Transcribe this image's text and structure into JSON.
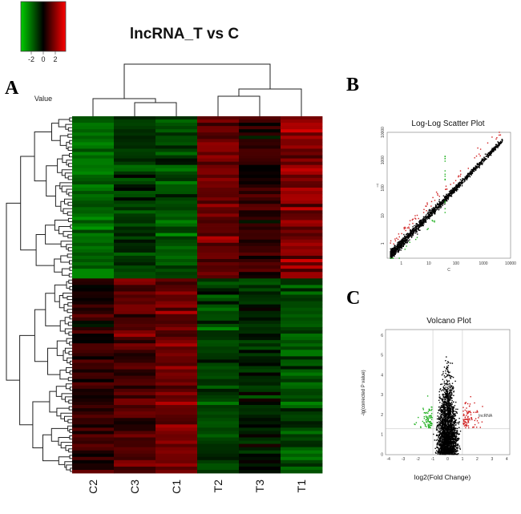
{
  "figure": {
    "panel_labels": [
      "A",
      "B",
      "C"
    ]
  },
  "chart_data": [
    {
      "type": "heatmap",
      "title": "lncRNA_T vs C",
      "columns": [
        "C2",
        "C3",
        "C1",
        "T2",
        "T3",
        "T1"
      ],
      "color_key": {
        "label": "Value",
        "ticks": [
          "-2",
          "0",
          "2"
        ],
        "range": [
          -3,
          3
        ],
        "low_color": "#00cc00",
        "mid_color": "#000000",
        "high_color": "#ff0000"
      },
      "row_count": 110,
      "row_groups": [
        {
          "rows": 50,
          "column_means": [
            -1.6,
            -0.8,
            -1.1,
            1.2,
            0.5,
            1.6
          ]
        },
        {
          "rows": 60,
          "column_means": [
            0.6,
            0.9,
            1.3,
            -1.0,
            -0.6,
            -1.2
          ]
        }
      ]
    },
    {
      "type": "scatter",
      "title": "Log-Log Scatter Plot",
      "xlabel": "C",
      "ylabel": "T",
      "x_ticks": [
        "1",
        "10",
        "100",
        "1000",
        "10000"
      ],
      "y_ticks": [
        "1",
        "10",
        "100",
        "1000",
        "10000"
      ],
      "xlim": [
        0.3,
        10000
      ],
      "ylim": [
        0.3,
        10000
      ],
      "scale": "log",
      "series": [
        {
          "name": "not significant",
          "color": "#000000",
          "n": 1400
        },
        {
          "name": "up",
          "color": "#d02020",
          "n": 70
        },
        {
          "name": "down",
          "color": "#20b020",
          "n": 30
        }
      ]
    },
    {
      "type": "scatter",
      "title": "Volcano Plot",
      "xlabel": "log2(Fold Change)",
      "ylabel": "-lg(corrected P value)",
      "x_ticks": [
        "-4",
        "-3",
        "-2",
        "-1",
        "0",
        "1",
        "2",
        "3",
        "4"
      ],
      "y_ticks": [
        "0",
        "1",
        "2",
        "3",
        "4",
        "5",
        "6"
      ],
      "xlim": [
        -4.2,
        4.2
      ],
      "ylim": [
        0,
        6.3
      ],
      "threshold_fc": 1,
      "threshold_p": 1.3,
      "annotation": "lncRNA",
      "series": [
        {
          "name": "not significant",
          "color": "#000000",
          "n": 2200
        },
        {
          "name": "up",
          "color": "#d02020",
          "n": 90
        },
        {
          "name": "down",
          "color": "#20b020",
          "n": 80
        }
      ]
    }
  ]
}
